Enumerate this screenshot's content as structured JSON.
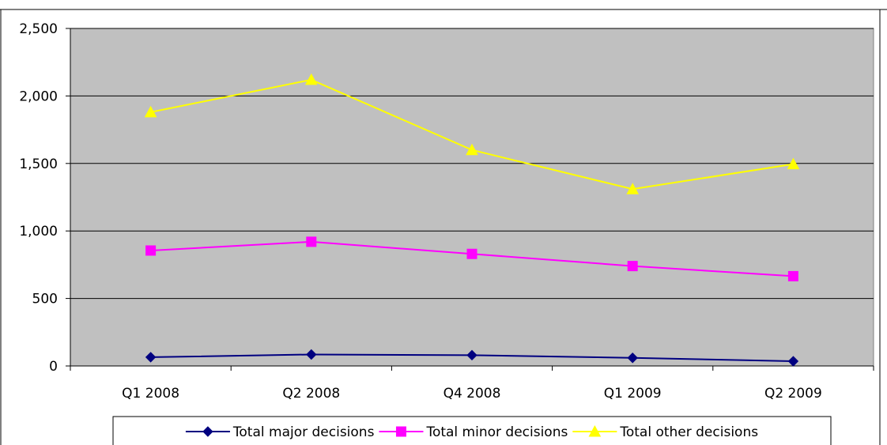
{
  "chart_data": {
    "type": "line",
    "title": "",
    "xlabel": "",
    "ylabel": "",
    "categories": [
      "Q1 2008",
      "Q2 2008",
      "Q4 2008",
      "Q1 2009",
      "Q2 2009"
    ],
    "ylim": [
      0,
      2500
    ],
    "yticks": [
      0,
      500,
      1000,
      1500,
      2000,
      2500
    ],
    "ytick_labels": [
      "0",
      "500",
      "1,000",
      "1,500",
      "2,000",
      "2,500"
    ],
    "grid": true,
    "plot_background": "#c0c0c0",
    "legend_position": "bottom",
    "series": [
      {
        "name": "Total major decisions",
        "values": [
          65,
          85,
          80,
          60,
          35
        ],
        "color": "#000080",
        "marker": "diamond"
      },
      {
        "name": "Total minor decisions",
        "values": [
          855,
          920,
          830,
          740,
          665
        ],
        "color": "#ff00ff",
        "marker": "square"
      },
      {
        "name": "Total  other decisions",
        "values": [
          1880,
          2120,
          1600,
          1310,
          1495
        ],
        "color": "#ffff00",
        "marker": "triangle"
      }
    ]
  }
}
